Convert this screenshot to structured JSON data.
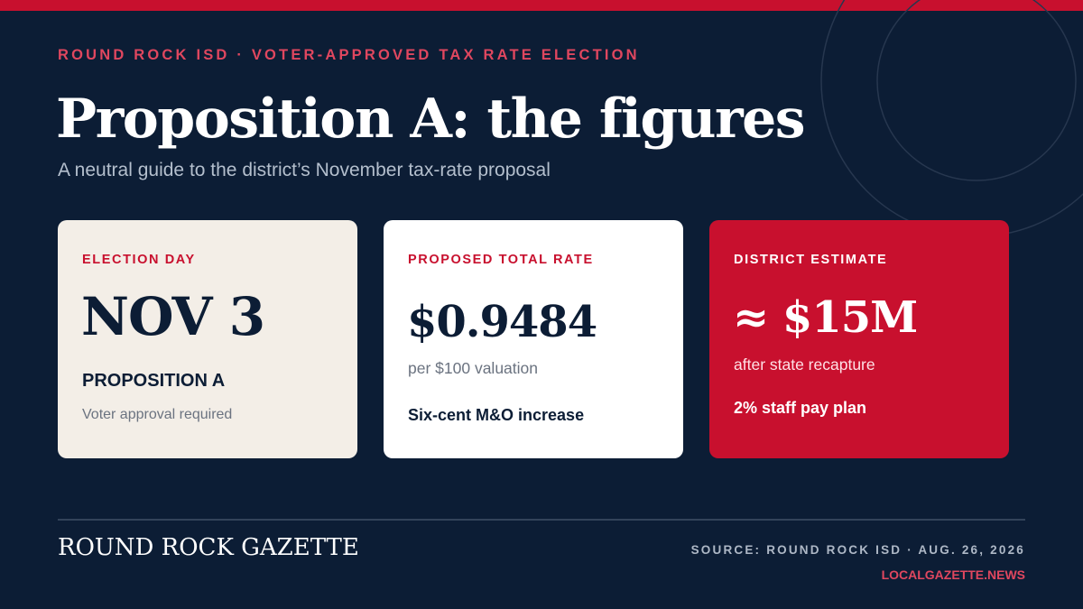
{
  "header": {
    "eyebrow": "ROUND ROCK ISD · VOTER-APPROVED TAX RATE ELECTION",
    "title": "Proposition A: the figures",
    "subtitle": "A neutral guide to the district’s November tax-rate proposal"
  },
  "cards": [
    {
      "label": "ELECTION DAY",
      "figure": "NOV 3",
      "heading": "PROPOSITION A",
      "note": "Voter approval required"
    },
    {
      "label": "PROPOSED TOTAL RATE",
      "figure": "$0.9484",
      "unit": "per $100 valuation",
      "detail": "Six-cent M&O increase"
    },
    {
      "label": "DISTRICT ESTIMATE",
      "figure": "≈ $15M",
      "unit": "after state recapture",
      "detail": "2% staff pay plan"
    }
  ],
  "footer": {
    "masthead": "ROUND ROCK GAZETTE",
    "source": "SOURCE: ROUND ROCK ISD · AUG. 26, 2026",
    "site": "LOCALGAZETTE.NEWS"
  },
  "colors": {
    "background": "#0c1d35",
    "accent_red": "#c8102e",
    "eyebrow_pink": "#e0475f",
    "cream_card": "#f3eee7",
    "white_card": "#ffffff"
  }
}
